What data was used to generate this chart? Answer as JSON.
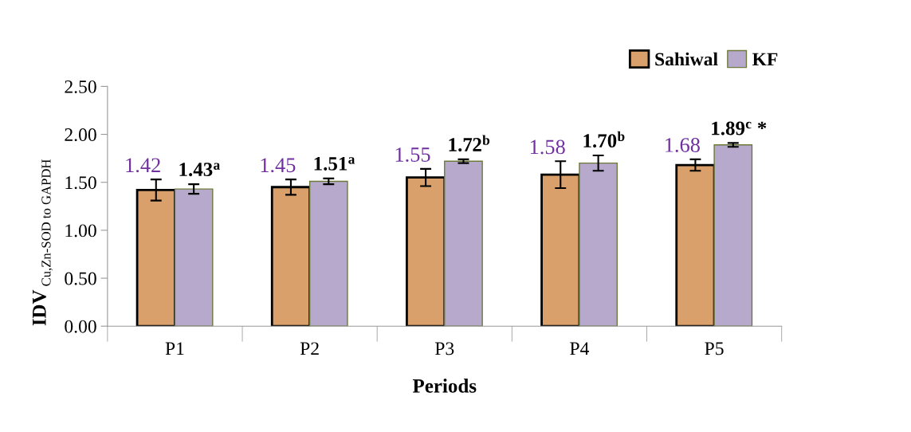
{
  "chart_data": {
    "type": "bar",
    "xlabel": "Periods",
    "ylabel": "IDV $_{Cu,Zn-SOD to GAPDH}$",
    "categories": [
      "P1",
      "P2",
      "P3",
      "P4",
      "P5"
    ],
    "ylim": [
      0,
      2.5
    ],
    "yticks": [
      {
        "value": 0,
        "label": "0.00"
      },
      {
        "value": 0.5,
        "label": "0.50"
      },
      {
        "value": 1,
        "label": "1.00"
      },
      {
        "value": 1.5,
        "label": "1.50"
      },
      {
        "value": 2,
        "label": "2.00"
      },
      {
        "value": 2.5,
        "label": "2.50"
      }
    ],
    "grid": false,
    "legend": "top right",
    "series": [
      {
        "name": "Sahiwal",
        "color": "#d9a06b",
        "values": [
          1.42,
          1.45,
          1.55,
          1.58,
          1.68
        ],
        "errors": [
          0.11,
          0.08,
          0.09,
          0.14,
          0.06
        ],
        "value_labels": [
          "1.42",
          "1.45",
          "1.55",
          "1.58",
          "1.68"
        ]
      },
      {
        "name": "KF",
        "color": "#b7a9cc",
        "values": [
          1.43,
          1.51,
          1.72,
          1.7,
          1.89
        ],
        "errors": [
          0.05,
          0.03,
          0.02,
          0.08,
          0.02
        ],
        "value_labels": [
          "1.43$^{a}$",
          "1.51$^{a}$",
          "1.72$^{b}$",
          "1.70$^{b}$",
          "1.89$^{c}$ *"
        ]
      }
    ]
  }
}
